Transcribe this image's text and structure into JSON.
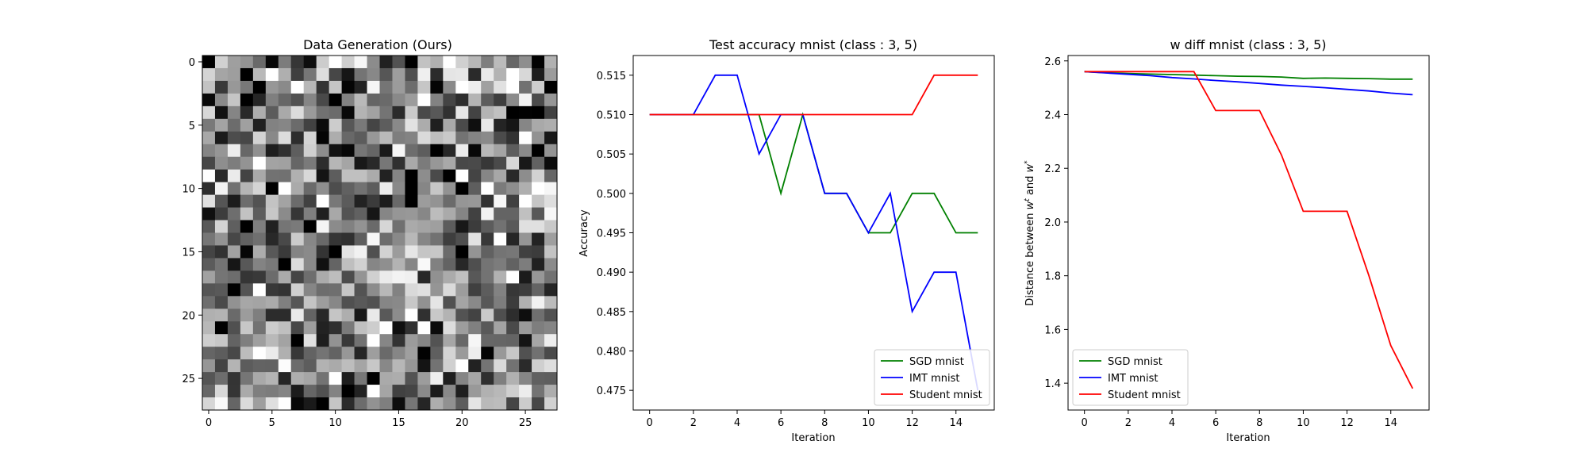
{
  "chart_data": [
    {
      "type": "heatmap",
      "title": "Data Generation (Ours)",
      "colormap": "gray",
      "rows": 28,
      "cols": 28,
      "xticks": [
        0,
        5,
        10,
        15,
        20,
        25
      ],
      "yticks": [
        0,
        5,
        10,
        15,
        20,
        25
      ],
      "xlim": [
        -0.5,
        27.5
      ],
      "ylim": [
        27.5,
        -0.5
      ],
      "seed": 1234,
      "highlights": [
        {
          "row": 2,
          "col": 11,
          "value": 0.02
        },
        {
          "row": 2,
          "col": 18,
          "value": 0.02
        },
        {
          "row": 3,
          "col": 4,
          "value": 0.15
        },
        {
          "row": 3,
          "col": 25,
          "value": 0.95
        },
        {
          "row": 9,
          "col": 2,
          "value": 0.92
        },
        {
          "row": 12,
          "col": 22,
          "value": 0.95
        },
        {
          "row": 12,
          "col": 27,
          "value": 0.97
        },
        {
          "row": 15,
          "col": 16,
          "value": 0.9
        },
        {
          "row": 24,
          "col": 17,
          "value": 0.08
        },
        {
          "row": 27,
          "col": 15,
          "value": 0.05
        },
        {
          "row": 17,
          "col": 14,
          "value": 0.92
        },
        {
          "row": 19,
          "col": 26,
          "value": 0.95
        },
        {
          "row": 23,
          "col": 5,
          "value": 0.92
        },
        {
          "row": 7,
          "col": 14,
          "value": 0.1
        }
      ]
    },
    {
      "type": "line",
      "title": "Test accuracy mnist (class : 3, 5)",
      "xlabel": "Iteration",
      "ylabel": "Accuracy",
      "xlim": [
        -0.75,
        15.75
      ],
      "ylim": [
        0.4725,
        0.5175
      ],
      "xticks": [
        0,
        2,
        4,
        6,
        8,
        10,
        12,
        14
      ],
      "yticks": [
        0.475,
        0.48,
        0.485,
        0.49,
        0.495,
        0.5,
        0.505,
        0.51,
        0.515
      ],
      "ytick_labels": [
        "0.475",
        "0.480",
        "0.485",
        "0.490",
        "0.495",
        "0.500",
        "0.505",
        "0.510",
        "0.515"
      ],
      "legend_position": "lower-right",
      "x": [
        0,
        1,
        2,
        3,
        4,
        5,
        6,
        7,
        8,
        9,
        10,
        11,
        12,
        13,
        14,
        15
      ],
      "series": [
        {
          "name": "SGD mnist",
          "color": "#008000",
          "values": [
            0.51,
            0.51,
            0.51,
            0.51,
            0.51,
            0.51,
            0.5,
            0.51,
            0.5,
            0.5,
            0.495,
            0.495,
            0.5,
            0.5,
            0.495,
            0.495
          ]
        },
        {
          "name": "IMT mnist",
          "color": "#0000ff",
          "values": [
            0.51,
            0.51,
            0.51,
            0.515,
            0.515,
            0.505,
            0.51,
            0.51,
            0.5,
            0.5,
            0.495,
            0.5,
            0.485,
            0.49,
            0.49,
            0.475
          ]
        },
        {
          "name": "Student mnist",
          "color": "#ff0000",
          "values": [
            0.51,
            0.51,
            0.51,
            0.51,
            0.51,
            0.51,
            0.51,
            0.51,
            0.51,
            0.51,
            0.51,
            0.51,
            0.51,
            0.515,
            0.515,
            0.515
          ]
        }
      ]
    },
    {
      "type": "line",
      "title": "w diff mnist (class : 3, 5)",
      "xlabel": "Iteration",
      "ylabel": "Distance between w^t and w^*",
      "ylabel_parts": {
        "prefix": "Distance between ",
        "w1": "w",
        "sup1": "t",
        "mid": " and ",
        "w2": "w",
        "sup2": "*"
      },
      "xlim": [
        -0.75,
        15.75
      ],
      "ylim": [
        1.3,
        2.62
      ],
      "xticks": [
        0,
        2,
        4,
        6,
        8,
        10,
        12,
        14
      ],
      "yticks": [
        1.4,
        1.6,
        1.8,
        2.0,
        2.2,
        2.4,
        2.6
      ],
      "ytick_labels": [
        "1.4",
        "1.6",
        "1.8",
        "2.0",
        "2.2",
        "2.4",
        "2.6"
      ],
      "legend_position": "lower-left",
      "x": [
        0,
        1,
        2,
        3,
        4,
        5,
        6,
        7,
        8,
        9,
        10,
        11,
        12,
        13,
        14,
        15
      ],
      "series": [
        {
          "name": "SGD mnist",
          "color": "#008000",
          "values": [
            2.56,
            2.556,
            2.553,
            2.551,
            2.549,
            2.547,
            2.545,
            2.543,
            2.542,
            2.54,
            2.535,
            2.536,
            2.535,
            2.534,
            2.532,
            2.532
          ]
        },
        {
          "name": "IMT mnist",
          "color": "#0000ff",
          "values": [
            2.56,
            2.555,
            2.55,
            2.545,
            2.538,
            2.533,
            2.527,
            2.522,
            2.516,
            2.51,
            2.505,
            2.5,
            2.494,
            2.488,
            2.48,
            2.474
          ]
        },
        {
          "name": "Student mnist",
          "color": "#ff0000",
          "values": [
            2.56,
            2.56,
            2.56,
            2.56,
            2.56,
            2.56,
            2.415,
            2.415,
            2.415,
            2.25,
            2.04,
            2.04,
            2.04,
            1.8,
            1.54,
            1.38
          ]
        }
      ]
    }
  ]
}
